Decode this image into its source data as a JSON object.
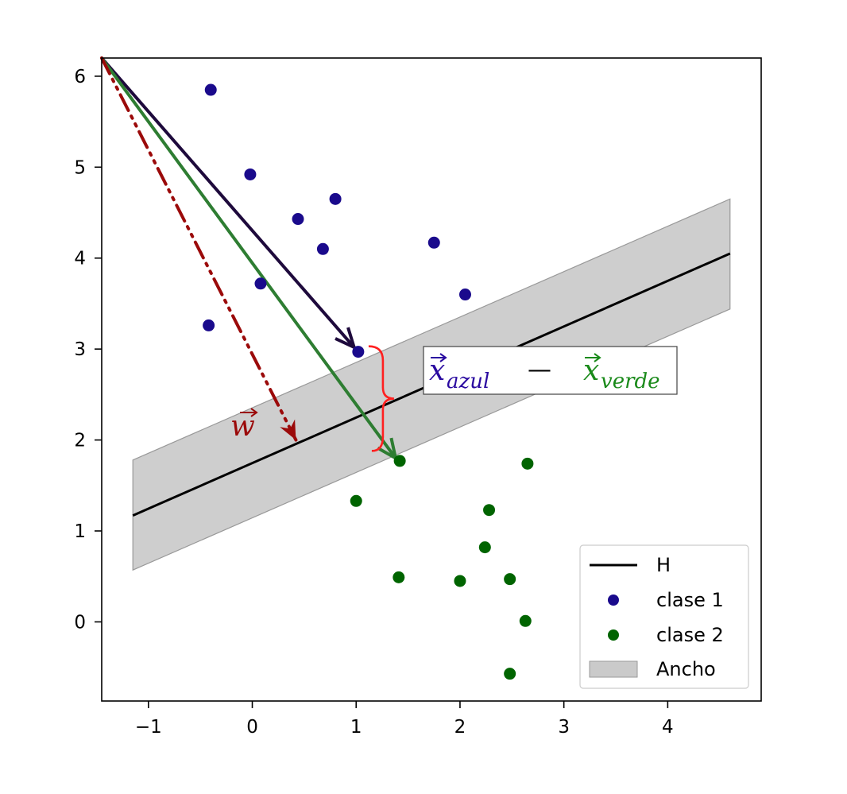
{
  "chart_data": {
    "type": "scatter",
    "xlim": [
      -1.45,
      4.9
    ],
    "ylim": [
      -0.87,
      6.2
    ],
    "x_ticks": [
      -1,
      0,
      1,
      2,
      3,
      4
    ],
    "y_ticks": [
      0,
      1,
      2,
      3,
      4,
      5,
      6
    ],
    "x_tick_labels": [
      "−1",
      "0",
      "1",
      "2",
      "3",
      "4"
    ],
    "y_tick_labels": [
      "0",
      "1",
      "2",
      "3",
      "4",
      "5",
      "6"
    ],
    "grid": false,
    "legend_placement": "bottom-right",
    "colors": {
      "clase1": "#1a0a8c",
      "clase2": "#006400",
      "line": "#000000",
      "band": "#b4b4b4",
      "arrow_azul": "#1e0a3c",
      "arrow_verde": "#2e7d32",
      "arrow_w": "#9b0a0a",
      "brace": "#ff2020",
      "math_azul": "#2a0aa0",
      "math_verde": "#1a8a1a"
    },
    "series": [
      {
        "name": "clase 1",
        "points": [
          [
            -0.4,
            5.85
          ],
          [
            -0.02,
            4.92
          ],
          [
            0.8,
            4.65
          ],
          [
            0.44,
            4.43
          ],
          [
            0.68,
            4.1
          ],
          [
            1.75,
            4.17
          ],
          [
            0.08,
            3.72
          ],
          [
            2.05,
            3.6
          ],
          [
            -0.42,
            3.26
          ],
          [
            1.02,
            2.97
          ]
        ]
      },
      {
        "name": "clase 2",
        "points": [
          [
            1.42,
            1.77
          ],
          [
            2.65,
            1.74
          ],
          [
            1.0,
            1.33
          ],
          [
            2.28,
            1.23
          ],
          [
            2.24,
            0.82
          ],
          [
            1.41,
            0.49
          ],
          [
            2.0,
            0.45
          ],
          [
            2.48,
            0.47
          ],
          [
            2.63,
            0.01
          ],
          [
            2.48,
            -0.57
          ]
        ]
      }
    ],
    "hyperplane": {
      "name": "H",
      "x": [
        -1.15,
        4.6
      ],
      "y": [
        1.17,
        4.05
      ]
    },
    "band": {
      "name": "Ancho",
      "x": [
        -1.15,
        4.6
      ],
      "upper": [
        1.78,
        4.65
      ],
      "lower": [
        0.57,
        3.44
      ]
    },
    "arrows": [
      {
        "id": "azul",
        "from": [
          -1.45,
          6.2
        ],
        "to": [
          0.98,
          3.02
        ],
        "style": "solid"
      },
      {
        "id": "verde",
        "from": [
          -1.45,
          6.2
        ],
        "to": [
          1.38,
          1.8
        ],
        "style": "solid"
      },
      {
        "id": "w",
        "from": [
          -1.45,
          6.2
        ],
        "to": [
          0.42,
          2.0
        ],
        "style": "dashdot"
      }
    ],
    "brace": {
      "x": 1.12,
      "y_top": 3.03,
      "y_bottom": 1.88
    }
  },
  "legend": {
    "h_label": "H",
    "clase1_label": "clase 1",
    "clase2_label": "clase 2",
    "band_label": "Ancho"
  },
  "annotations": {
    "w_symbol": "w",
    "x_symbol": "x",
    "azul_subscript": "azul",
    "minus": "—",
    "verde_subscript": "verde"
  }
}
